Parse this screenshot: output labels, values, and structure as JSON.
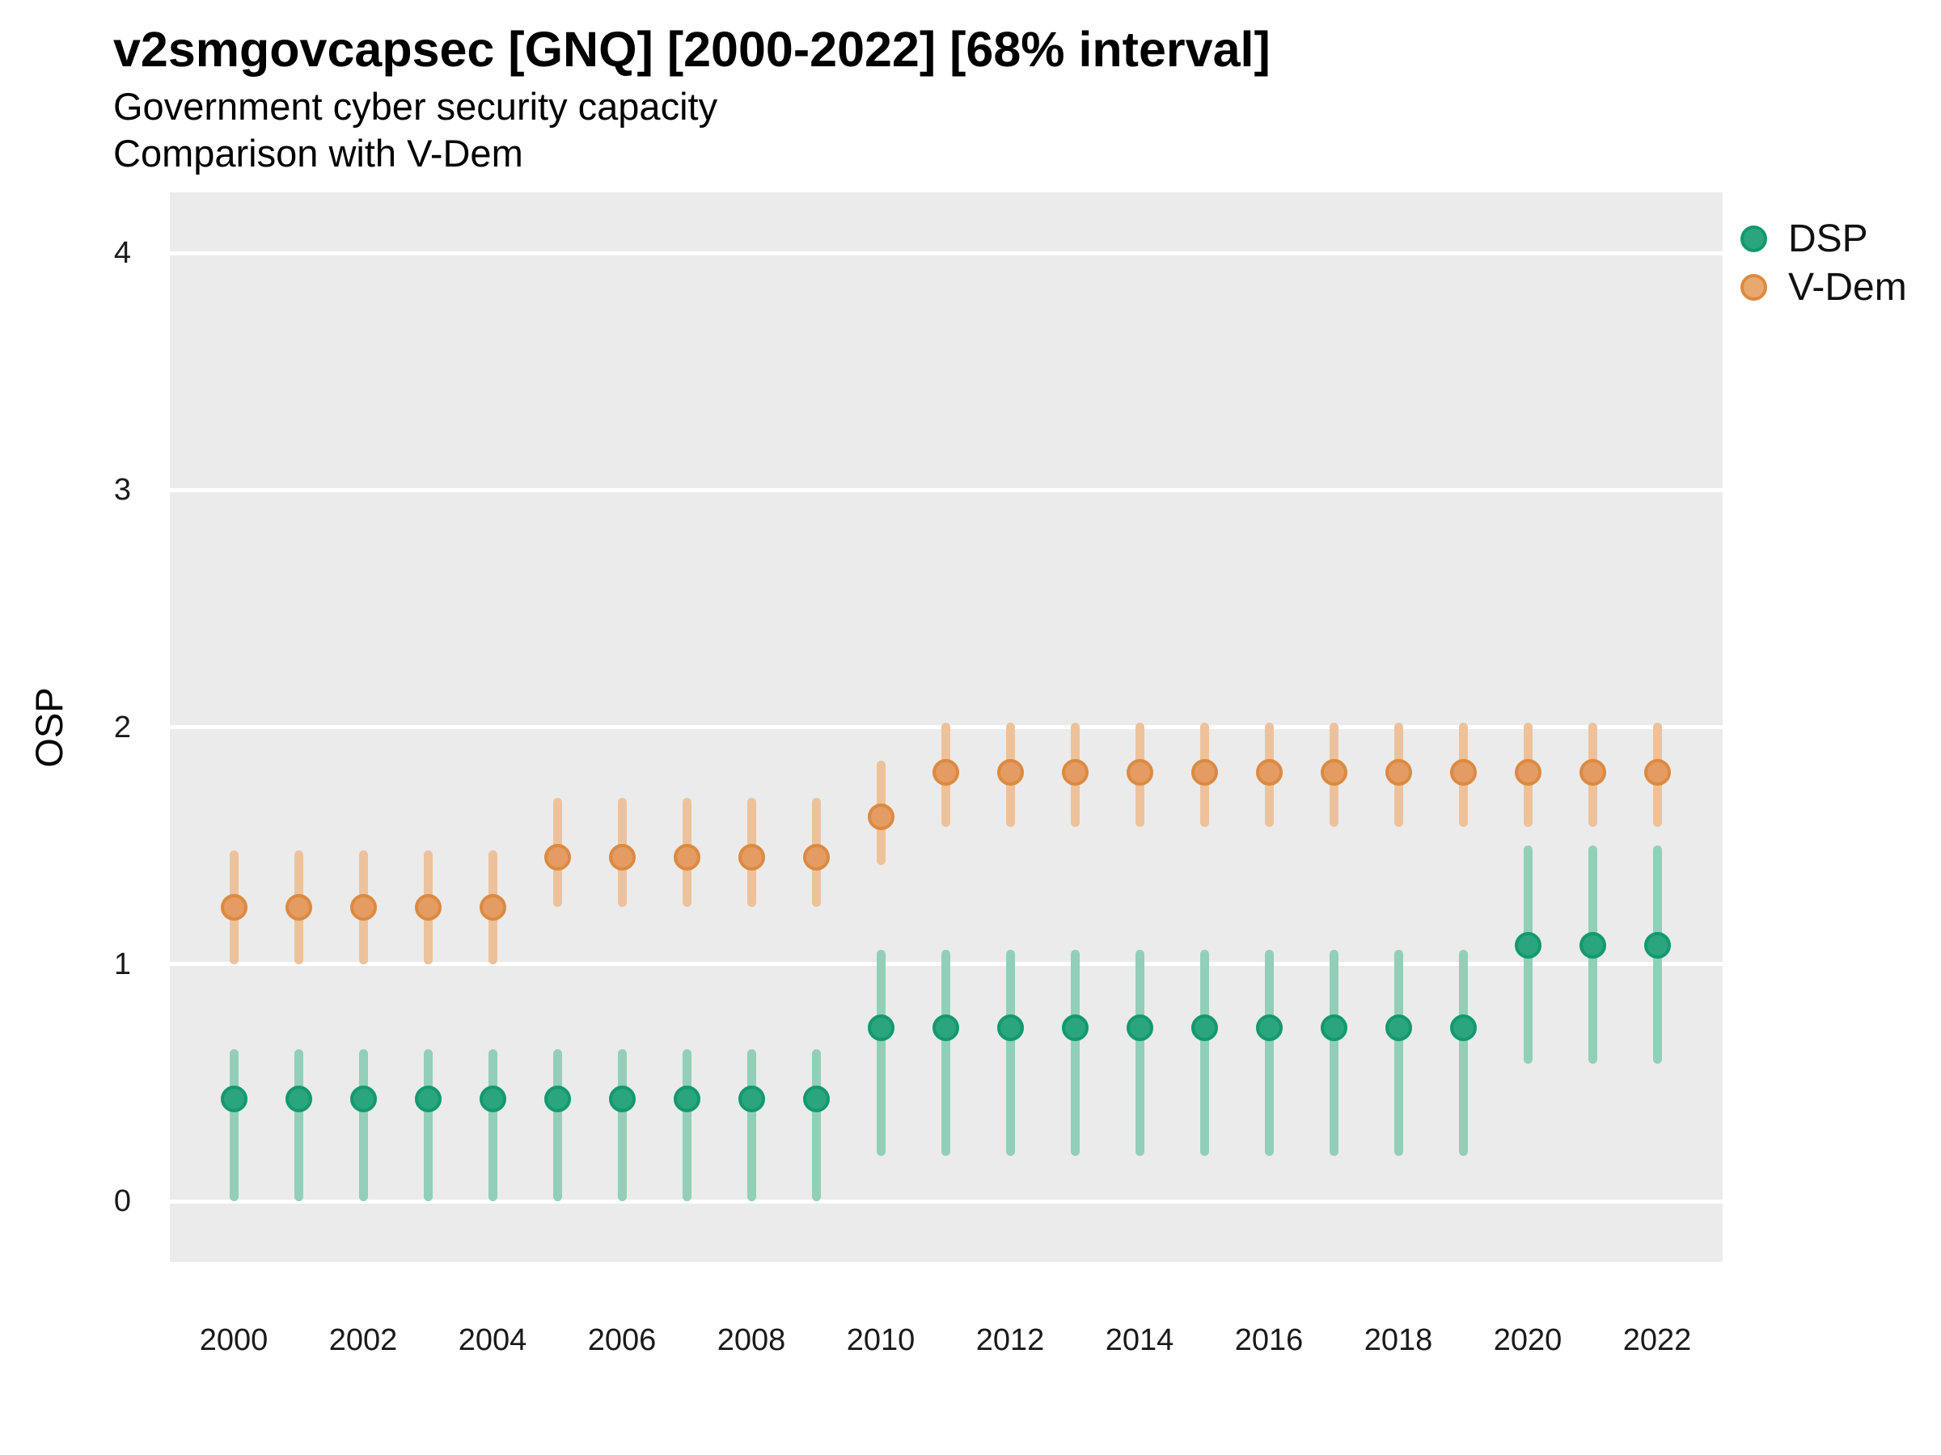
{
  "header": {
    "title": "v2smgovcapsec [GNQ] [2000-2022] [68% interval]",
    "subtitle_line1": "Government cyber security capacity",
    "subtitle_line2": "Comparison with V-Dem"
  },
  "y_axis": {
    "label": "OSP",
    "tick_labels": [
      "0",
      "1",
      "2",
      "3",
      "4"
    ]
  },
  "x_axis": {
    "tick_labels": [
      "2000",
      "2002",
      "2004",
      "2006",
      "2008",
      "2010",
      "2012",
      "2014",
      "2016",
      "2018",
      "2020",
      "2022"
    ]
  },
  "legend": {
    "items": [
      {
        "label": "DSP",
        "fill": "#2aa57e",
        "stroke": "#13996f"
      },
      {
        "label": "V-Dem",
        "fill": "#e9a96e",
        "stroke": "#dc8a41"
      }
    ]
  },
  "colors": {
    "panel_background": "#ebebeb",
    "gridline": "#ffffff",
    "dsp_point_fill": "#2aa57e",
    "dsp_point_stroke": "#13996f",
    "dsp_bar": "#92cfb8",
    "vdem_point_fill": "#e49c62",
    "vdem_point_stroke": "#dc8a41",
    "vdem_bar": "#edc29b"
  },
  "chart_data": {
    "type": "scatter",
    "subtype": "pointrange",
    "title": "v2smgovcapsec [GNQ] [2000-2022] [68% interval]",
    "subtitle": [
      "Government cyber security capacity",
      "Comparison with V-Dem"
    ],
    "ylabel": "OSP",
    "xlabel": "",
    "interval": "68%",
    "grid": "major-horizontal-white",
    "panel_background": "#ebebeb",
    "legend_position": "right-top",
    "ylim": [
      0,
      4
    ],
    "yticks": [
      0,
      1,
      2,
      3,
      4
    ],
    "xticks": [
      2000,
      2002,
      2004,
      2006,
      2008,
      2010,
      2012,
      2014,
      2016,
      2018,
      2020,
      2022
    ],
    "x": [
      2000,
      2001,
      2002,
      2003,
      2004,
      2005,
      2006,
      2007,
      2008,
      2009,
      2010,
      2011,
      2012,
      2013,
      2014,
      2015,
      2016,
      2017,
      2018,
      2019,
      2020,
      2021,
      2022
    ],
    "series": [
      {
        "name": "V-Dem",
        "point_fill": "#e49c62",
        "point_stroke": "#dc8a41",
        "bar_color": "#edc29b",
        "values": [
          1.24,
          1.24,
          1.24,
          1.24,
          1.24,
          1.45,
          1.45,
          1.45,
          1.45,
          1.45,
          1.62,
          1.81,
          1.81,
          1.81,
          1.81,
          1.81,
          1.81,
          1.81,
          1.81,
          1.81,
          1.81,
          1.81,
          1.81
        ],
        "lower": [
          1.0,
          1.0,
          1.0,
          1.0,
          1.0,
          1.24,
          1.24,
          1.24,
          1.24,
          1.24,
          1.42,
          1.58,
          1.58,
          1.58,
          1.58,
          1.58,
          1.58,
          1.58,
          1.58,
          1.58,
          1.58,
          1.58,
          1.58
        ],
        "upper": [
          1.48,
          1.48,
          1.48,
          1.48,
          1.48,
          1.7,
          1.7,
          1.7,
          1.7,
          1.7,
          1.86,
          2.02,
          2.02,
          2.02,
          2.02,
          2.02,
          2.02,
          2.02,
          2.02,
          2.02,
          2.02,
          2.02,
          2.02
        ]
      },
      {
        "name": "DSP",
        "point_fill": "#2aa57e",
        "point_stroke": "#13996f",
        "bar_color": "#92cfb8",
        "values": [
          0.43,
          0.43,
          0.43,
          0.43,
          0.43,
          0.43,
          0.43,
          0.43,
          0.43,
          0.43,
          0.73,
          0.73,
          0.73,
          0.73,
          0.73,
          0.73,
          0.73,
          0.73,
          0.73,
          0.73,
          1.08,
          1.08,
          1.08
        ],
        "lower": [
          0.0,
          0.0,
          0.0,
          0.0,
          0.0,
          0.0,
          0.0,
          0.0,
          0.0,
          0.0,
          0.19,
          0.19,
          0.19,
          0.19,
          0.19,
          0.19,
          0.19,
          0.19,
          0.19,
          0.19,
          0.58,
          0.58,
          0.58
        ],
        "upper": [
          0.64,
          0.64,
          0.64,
          0.64,
          0.64,
          0.64,
          0.64,
          0.64,
          0.64,
          0.64,
          1.06,
          1.06,
          1.06,
          1.06,
          1.06,
          1.06,
          1.06,
          1.06,
          1.06,
          1.06,
          1.5,
          1.5,
          1.5
        ]
      }
    ]
  }
}
